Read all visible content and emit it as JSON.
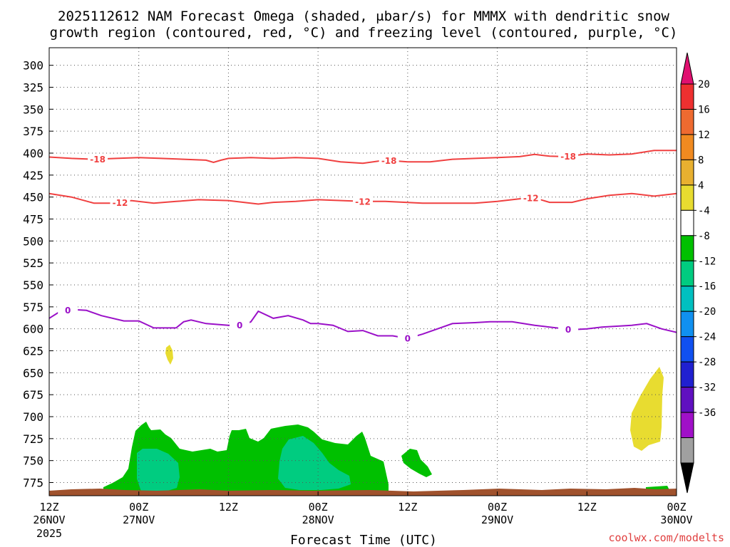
{
  "chart_data": {
    "type": "heatmap",
    "title_line1": "2025112612 NAM Forecast Omega (shaded, μbar/s) for MMMX with dendritic snow",
    "title_line2": "growth region (contoured, red, °C) and freezing level (contoured, purple, °C)",
    "xlabel": "Forecast Time (UTC)",
    "credit": "coolwx.com/modelts",
    "x_range_hours": [
      0,
      84
    ],
    "y_range_hpa": [
      280,
      790
    ],
    "y_ticks": [
      300,
      325,
      350,
      375,
      400,
      425,
      450,
      475,
      500,
      525,
      550,
      575,
      600,
      625,
      650,
      675,
      700,
      725,
      750,
      775
    ],
    "x_ticks": [
      {
        "hour": 0,
        "l1": "12Z",
        "l2": "26NOV",
        "l3": "2025"
      },
      {
        "hour": 12,
        "l1": "00Z",
        "l2": "27NOV",
        "l3": ""
      },
      {
        "hour": 24,
        "l1": "12Z",
        "l2": "",
        "l3": ""
      },
      {
        "hour": 36,
        "l1": "00Z",
        "l2": "28NOV",
        "l3": ""
      },
      {
        "hour": 48,
        "l1": "12Z",
        "l2": "",
        "l3": ""
      },
      {
        "hour": 60,
        "l1": "00Z",
        "l2": "29NOV",
        "l3": ""
      },
      {
        "hour": 72,
        "l1": "12Z",
        "l2": "",
        "l3": ""
      },
      {
        "hour": 84,
        "l1": "00Z",
        "l2": "30NOV",
        "l3": ""
      }
    ],
    "colorbar": {
      "labels": [
        "20",
        "16",
        "12",
        "8",
        "4",
        "-4",
        "-8",
        "-12",
        "-16",
        "-20",
        "-24",
        "-28",
        "-32",
        "-36"
      ],
      "bands": [
        "#ee3030",
        "#ee6a30",
        "#f08a20",
        "#e8b030",
        "#e8dc30",
        "#ffffff",
        "#00c000",
        "#00cc80",
        "#00c0c0",
        "#1090f0",
        "#1050f0",
        "#2020d0",
        "#6010c0",
        "#a010c8",
        "#a0a0a0"
      ],
      "top_triangle": "#e01070",
      "bottom_triangle": "#000000"
    },
    "contours_red": [
      {
        "label": "-18",
        "points": [
          [
            0,
            404.5
          ],
          [
            3,
            406
          ],
          [
            6,
            407
          ],
          [
            9,
            406
          ],
          [
            12,
            405
          ],
          [
            15,
            406
          ],
          [
            18,
            407
          ],
          [
            21,
            408
          ],
          [
            22,
            410.5
          ],
          [
            23,
            408
          ],
          [
            24,
            406
          ],
          [
            27,
            405
          ],
          [
            30,
            406
          ],
          [
            33,
            405
          ],
          [
            36,
            406
          ],
          [
            39,
            410
          ],
          [
            42,
            411.5
          ],
          [
            45,
            408
          ],
          [
            48,
            410
          ],
          [
            51,
            410
          ],
          [
            54,
            407
          ],
          [
            57,
            406
          ],
          [
            60,
            405
          ],
          [
            63,
            404
          ],
          [
            65,
            401.5
          ],
          [
            67,
            403.5
          ],
          [
            69,
            404
          ],
          [
            72,
            401
          ],
          [
            75,
            402
          ],
          [
            78,
            401
          ],
          [
            81,
            397
          ],
          [
            84,
            397
          ]
        ],
        "label_hours": [
          6.5,
          45.5,
          69.5
        ]
      },
      {
        "label": "-12",
        "points": [
          [
            0,
            446
          ],
          [
            3,
            450
          ],
          [
            6,
            457
          ],
          [
            9,
            457
          ],
          [
            11,
            454
          ],
          [
            14,
            457
          ],
          [
            17,
            455
          ],
          [
            20,
            453
          ],
          [
            24,
            454
          ],
          [
            28,
            458
          ],
          [
            30,
            456
          ],
          [
            33,
            455
          ],
          [
            36,
            453
          ],
          [
            42,
            455
          ],
          [
            45,
            455
          ],
          [
            50,
            457
          ],
          [
            54,
            457
          ],
          [
            57,
            457
          ],
          [
            60,
            455
          ],
          [
            63,
            452
          ],
          [
            65,
            451
          ],
          [
            67,
            456
          ],
          [
            70,
            456
          ],
          [
            72,
            452
          ],
          [
            75,
            448
          ],
          [
            78,
            446
          ],
          [
            81,
            449
          ],
          [
            84,
            446
          ]
        ],
        "label_hours": [
          9.5,
          42,
          64.5
        ]
      }
    ],
    "contours_purple": [
      {
        "label": "0",
        "points": [
          [
            0,
            588
          ],
          [
            1.5,
            580
          ],
          [
            3,
            578
          ],
          [
            5,
            579
          ],
          [
            7,
            585
          ],
          [
            10,
            591
          ],
          [
            12,
            591
          ],
          [
            14,
            599
          ],
          [
            17,
            599
          ],
          [
            18,
            592
          ],
          [
            19,
            590
          ],
          [
            21,
            594
          ],
          [
            24,
            596
          ],
          [
            26,
            596
          ],
          [
            27,
            592
          ],
          [
            28,
            580
          ],
          [
            30,
            588
          ],
          [
            32,
            585
          ],
          [
            34,
            590
          ],
          [
            35,
            594
          ],
          [
            36,
            594
          ],
          [
            38,
            596
          ],
          [
            40,
            603
          ],
          [
            42,
            602
          ],
          [
            44,
            608
          ],
          [
            46,
            608
          ],
          [
            48,
            611
          ],
          [
            50,
            606
          ],
          [
            52,
            600
          ],
          [
            54,
            594
          ],
          [
            57,
            593
          ],
          [
            59,
            592
          ],
          [
            60,
            592
          ],
          [
            62,
            592
          ],
          [
            65,
            596
          ],
          [
            67,
            598
          ],
          [
            70,
            601
          ],
          [
            72,
            600
          ],
          [
            74,
            598
          ],
          [
            76,
            597
          ],
          [
            78,
            596
          ],
          [
            80,
            594
          ],
          [
            82,
            600
          ],
          [
            84,
            604
          ]
        ],
        "label_hours": [
          2.5,
          25.5,
          48,
          69.5
        ]
      }
    ]
  }
}
